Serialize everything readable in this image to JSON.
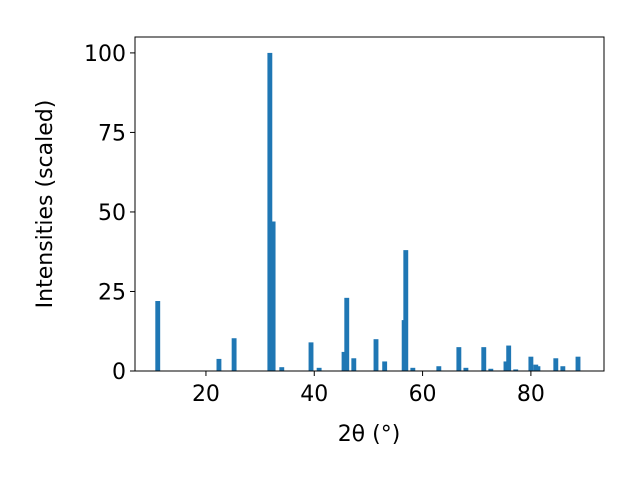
{
  "chart_data": {
    "type": "bar",
    "xlabel": "2θ (°)",
    "ylabel": "Intensities (scaled)",
    "color": "#1f77b4",
    "x": [
      11.1,
      22.4,
      25.2,
      31.8,
      32.4,
      34.0,
      39.4,
      40.9,
      45.5,
      46.0,
      47.3,
      51.4,
      53.0,
      56.6,
      56.9,
      58.2,
      63.0,
      66.7,
      68.0,
      71.3,
      72.6,
      75.4,
      75.9,
      77.2,
      80.0,
      80.9,
      81.3,
      84.6,
      85.9,
      88.7
    ],
    "values": [
      22,
      3.8,
      10.3,
      100,
      47,
      1.2,
      9,
      1,
      6,
      23,
      4,
      10,
      3,
      16,
      38,
      1,
      1.5,
      7.5,
      1,
      7.5,
      0.7,
      3,
      8,
      0.5,
      4.5,
      2,
      1.5,
      4,
      1.5,
      4.5
    ],
    "xlim": [
      6.9,
      93.5
    ],
    "ylim": [
      0,
      105
    ],
    "xticks": [
      20,
      40,
      60,
      80
    ],
    "yticks": [
      0,
      25,
      50,
      75,
      100
    ]
  }
}
